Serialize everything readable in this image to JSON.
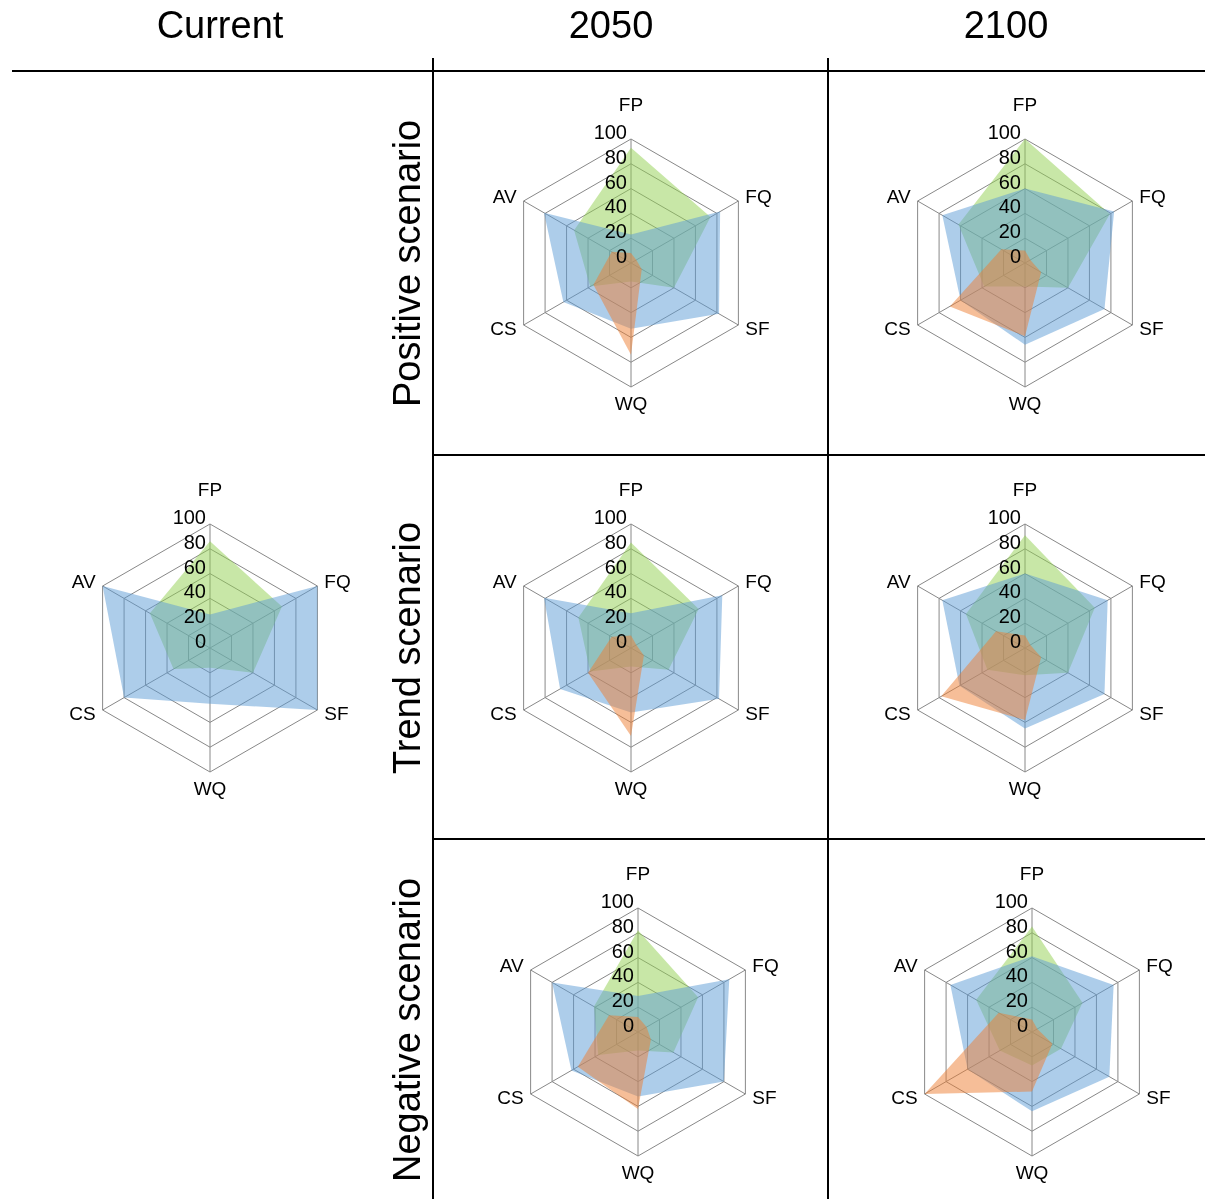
{
  "chart_data": [
    {
      "type": "radar",
      "title": "Current",
      "categories": [
        "FP",
        "FQ",
        "SF",
        "WQ",
        "CS",
        "AV"
      ],
      "ylim": [
        0,
        100
      ],
      "yticks": [
        0,
        20,
        40,
        60,
        80,
        100
      ],
      "grid": true,
      "series": [
        {
          "color": "#92d050",
          "values": [
            86,
            67,
            40,
            16,
            34,
            56
          ]
        },
        {
          "color": "#5b9bd5",
          "values": [
            27,
            100,
            100,
            45,
            80,
            100
          ]
        }
      ]
    },
    {
      "type": "radar",
      "title": "2050",
      "ylabel": "Positive scenario",
      "categories": [
        "FP",
        "FQ",
        "SF",
        "WQ",
        "CS",
        "AV"
      ],
      "ylim": [
        0,
        100
      ],
      "yticks": [
        0,
        20,
        40,
        60,
        80,
        100
      ],
      "grid": true,
      "series": [
        {
          "color": "#92d050",
          "values": [
            93,
            74,
            40,
            15,
            38,
            53
          ]
        },
        {
          "color": "#5b9bd5",
          "values": [
            23,
            83,
            82,
            53,
            63,
            81
          ]
        },
        {
          "color": "#ed7d31",
          "values": [
            8,
            5,
            10,
            74,
            35,
            18
          ]
        }
      ]
    },
    {
      "type": "radar",
      "title": "2100",
      "categories": [
        "FP",
        "FQ",
        "SF",
        "WQ",
        "CS",
        "AV"
      ],
      "ylim": [
        0,
        100
      ],
      "yticks": [
        0,
        20,
        40,
        60,
        80,
        100
      ],
      "grid": true,
      "series": [
        {
          "color": "#92d050",
          "values": [
            100,
            79,
            40,
            19,
            38,
            62
          ]
        },
        {
          "color": "#5b9bd5",
          "values": [
            60,
            83,
            74,
            66,
            60,
            77
          ]
        },
        {
          "color": "#ed7d31",
          "values": [
            10,
            5,
            15,
            59,
            70,
            22
          ]
        }
      ]
    },
    {
      "type": "radar",
      "ylabel": "Trend scenario",
      "categories": [
        "FP",
        "FQ",
        "SF",
        "WQ",
        "CS",
        "AV"
      ],
      "ylim": [
        0,
        100
      ],
      "yticks": [
        0,
        20,
        40,
        60,
        80,
        100
      ],
      "grid": true,
      "series": [
        {
          "color": "#92d050",
          "values": [
            85,
            63,
            35,
            15,
            38,
            49
          ]
        },
        {
          "color": "#5b9bd5",
          "values": [
            28,
            85,
            82,
            52,
            66,
            81
          ]
        },
        {
          "color": "#ed7d31",
          "values": [
            10,
            5,
            12,
            71,
            40,
            18
          ]
        }
      ]
    },
    {
      "type": "radar",
      "categories": [
        "FP",
        "FQ",
        "SF",
        "WQ",
        "CS",
        "AV"
      ],
      "ylim": [
        0,
        100
      ],
      "yticks": [
        0,
        20,
        40,
        60,
        80,
        100
      ],
      "grid": true,
      "series": [
        {
          "color": "#92d050",
          "values": [
            91,
            65,
            40,
            22,
            35,
            55
          ]
        },
        {
          "color": "#5b9bd5",
          "values": [
            60,
            77,
            74,
            65,
            61,
            77
          ]
        },
        {
          "color": "#ed7d31",
          "values": [
            10,
            5,
            15,
            58,
            78,
            27
          ]
        }
      ]
    },
    {
      "type": "radar",
      "ylabel": "Negative scenario",
      "categories": [
        "FP",
        "FQ",
        "SF",
        "WQ",
        "CS",
        "AV"
      ],
      "ylim": [
        0,
        100
      ],
      "yticks": [
        0,
        20,
        40,
        60,
        80,
        100
      ],
      "grid": true,
      "series": [
        {
          "color": "#92d050",
          "values": [
            82,
            56,
            33,
            15,
            37,
            41
          ]
        },
        {
          "color": "#5b9bd5",
          "values": [
            29,
            85,
            80,
            52,
            62,
            80
          ]
        },
        {
          "color": "#ed7d31",
          "values": [
            12,
            8,
            12,
            62,
            56,
            27
          ]
        }
      ]
    },
    {
      "type": "radar",
      "categories": [
        "FP",
        "FQ",
        "SF",
        "WQ",
        "CS",
        "AV"
      ],
      "ylim": [
        0,
        100
      ],
      "yticks": [
        0,
        20,
        40,
        60,
        80,
        100
      ],
      "grid": true,
      "series": [
        {
          "color": "#92d050",
          "values": [
            85,
            47,
            27,
            27,
            30,
            52
          ]
        },
        {
          "color": "#5b9bd5",
          "values": [
            61,
            76,
            72,
            64,
            60,
            76
          ]
        },
        {
          "color": "#ed7d31",
          "values": [
            10,
            5,
            19,
            48,
            100,
            31
          ]
        }
      ]
    }
  ]
}
